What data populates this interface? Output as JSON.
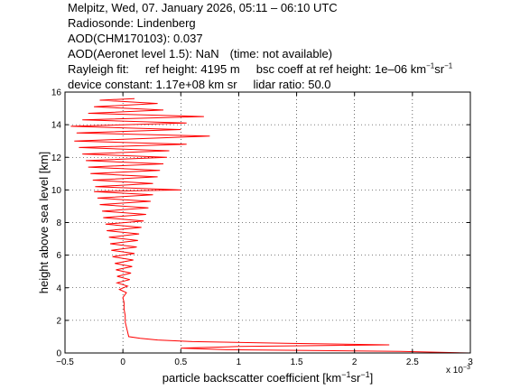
{
  "header": {
    "line1": "Melpitz, Wed, 07. January 2026, 05:11 – 06:10 UTC",
    "line2": "Radiosonde: Lindenberg",
    "line3": "AOD(CHM170103): 0.037",
    "line4a": "AOD(Aeronet level 1.5): NaN",
    "line4b": "(time: not available)",
    "line5a": "Rayleigh fit:",
    "line5b": "ref height: 4195 m",
    "line5c": "bsc coeff at ref height: 1e–06 km",
    "line5c_sup1": "−1",
    "line5c_mid": "sr",
    "line5c_sup2": "−1",
    "line6a": "device constant: 1.17e+08 km sr",
    "line6b": "lidar ratio: 50.0"
  },
  "chart_data": {
    "type": "line",
    "xlabel": "particle backscatter coefficient [km",
    "xlabel_sup1": "−1",
    "xlabel_mid": "sr",
    "xlabel_sup2": "−1",
    "xlabel_end": "]",
    "x_exponent": "x 10",
    "x_exponent_power": "−3",
    "ylabel": "height above sea level [km]",
    "xlim": [
      -0.5,
      3
    ],
    "ylim": [
      0,
      16
    ],
    "xticks": [
      -0.5,
      0,
      0.5,
      1,
      1.5,
      2,
      2.5,
      3
    ],
    "xtick_labels": [
      "−0.5",
      "0",
      "0.5",
      "1",
      "1.5",
      "2",
      "2.5",
      "3"
    ],
    "yticks": [
      0,
      2,
      4,
      6,
      8,
      10,
      12,
      14,
      16
    ],
    "ytick_labels": [
      "0",
      "2",
      "4",
      "6",
      "8",
      "10",
      "12",
      "14",
      "16"
    ],
    "grid": true,
    "series_color": "#ff0000",
    "series": [
      {
        "points": [
          [
            3.0,
            0.0
          ],
          [
            2.4,
            0.1
          ],
          [
            0.9,
            0.2
          ],
          [
            0.5,
            0.3
          ],
          [
            1.0,
            0.4
          ],
          [
            2.3,
            0.5
          ],
          [
            1.4,
            0.6
          ],
          [
            0.6,
            0.7
          ],
          [
            0.3,
            0.8
          ],
          [
            0.15,
            0.9
          ],
          [
            0.05,
            1.0
          ],
          [
            0.04,
            1.3
          ],
          [
            0.03,
            1.6
          ],
          [
            0.02,
            1.9
          ],
          [
            0.02,
            2.3
          ],
          [
            0.01,
            2.7
          ],
          [
            0.01,
            3.1
          ],
          [
            0.0,
            3.4
          ],
          [
            0.03,
            3.7
          ],
          [
            -0.03,
            3.9
          ],
          [
            0.04,
            4.1
          ],
          [
            -0.05,
            4.3
          ],
          [
            0.06,
            4.5
          ],
          [
            -0.05,
            4.7
          ],
          [
            0.07,
            4.9
          ],
          [
            -0.06,
            5.1
          ],
          [
            0.08,
            5.3
          ],
          [
            -0.07,
            5.5
          ],
          [
            0.09,
            5.7
          ],
          [
            -0.09,
            5.9
          ],
          [
            0.1,
            6.1
          ],
          [
            -0.1,
            6.3
          ],
          [
            0.12,
            6.5
          ],
          [
            -0.11,
            6.7
          ],
          [
            0.13,
            6.9
          ],
          [
            -0.12,
            7.1
          ],
          [
            0.14,
            7.3
          ],
          [
            -0.14,
            7.5
          ],
          [
            0.16,
            7.7
          ],
          [
            -0.15,
            7.9
          ],
          [
            0.18,
            8.1
          ],
          [
            -0.17,
            8.3
          ],
          [
            0.2,
            8.5
          ],
          [
            -0.18,
            8.7
          ],
          [
            0.22,
            8.9
          ],
          [
            -0.2,
            9.1
          ],
          [
            0.24,
            9.3
          ],
          [
            -0.22,
            9.5
          ],
          [
            0.26,
            9.7
          ],
          [
            -0.25,
            9.9
          ],
          [
            0.5,
            10.0
          ],
          [
            -0.24,
            10.2
          ],
          [
            0.26,
            10.4
          ],
          [
            -0.26,
            10.6
          ],
          [
            0.3,
            10.8
          ],
          [
            -0.28,
            11.0
          ],
          [
            0.32,
            11.2
          ],
          [
            -0.3,
            11.4
          ],
          [
            0.35,
            11.6
          ],
          [
            -0.32,
            11.8
          ],
          [
            0.38,
            12.0
          ],
          [
            -0.35,
            12.2
          ],
          [
            0.4,
            12.4
          ],
          [
            -0.38,
            12.6
          ],
          [
            0.55,
            12.8
          ],
          [
            -0.42,
            13.0
          ],
          [
            0.75,
            13.3
          ],
          [
            -0.4,
            13.5
          ],
          [
            0.5,
            13.7
          ],
          [
            -0.45,
            13.9
          ],
          [
            0.55,
            14.1
          ],
          [
            -0.35,
            14.3
          ],
          [
            0.7,
            14.5
          ],
          [
            -0.3,
            14.7
          ],
          [
            0.35,
            14.9
          ],
          [
            -0.25,
            15.1
          ],
          [
            0.3,
            15.3
          ],
          [
            -0.2,
            15.5
          ],
          [
            0.1,
            15.6
          ]
        ]
      }
    ]
  }
}
